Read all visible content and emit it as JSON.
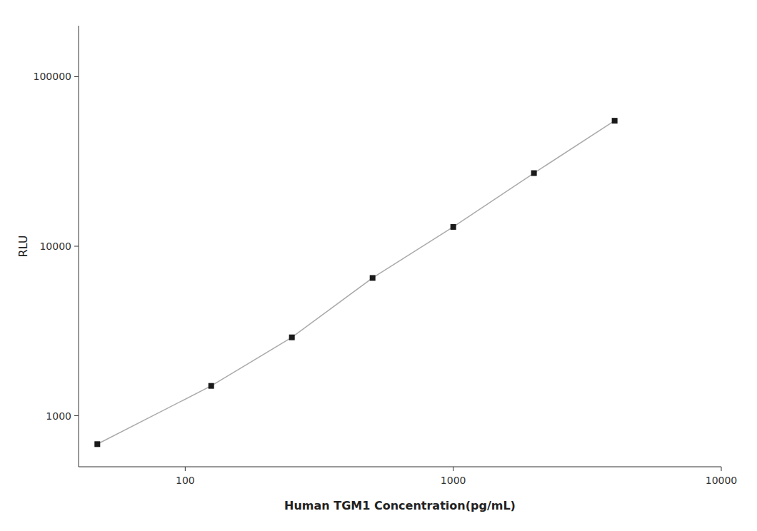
{
  "chart_data": {
    "type": "line",
    "xlabel": "Human TGM1 Concentration(pg/mL)",
    "ylabel": "RLU",
    "x": [
      47.0,
      125.0,
      250.0,
      500.0,
      1000.0,
      2000.0,
      4000.0
    ],
    "series": [
      {
        "values": [
          680.0,
          1500.0,
          2900.0,
          6500.0,
          13000.0,
          27000.0,
          55000.0
        ],
        "color": "#aaaaaa",
        "marker": "square",
        "line_style": "solid"
      }
    ],
    "color": "#1a1a1a",
    "log": true,
    "xlim": [
      40,
      10000
    ],
    "ylim": [
      500,
      200000
    ],
    "xticks": [
      100,
      1000,
      10000
    ],
    "yticks": [
      1000,
      10000,
      100000
    ],
    "grid": false
  }
}
